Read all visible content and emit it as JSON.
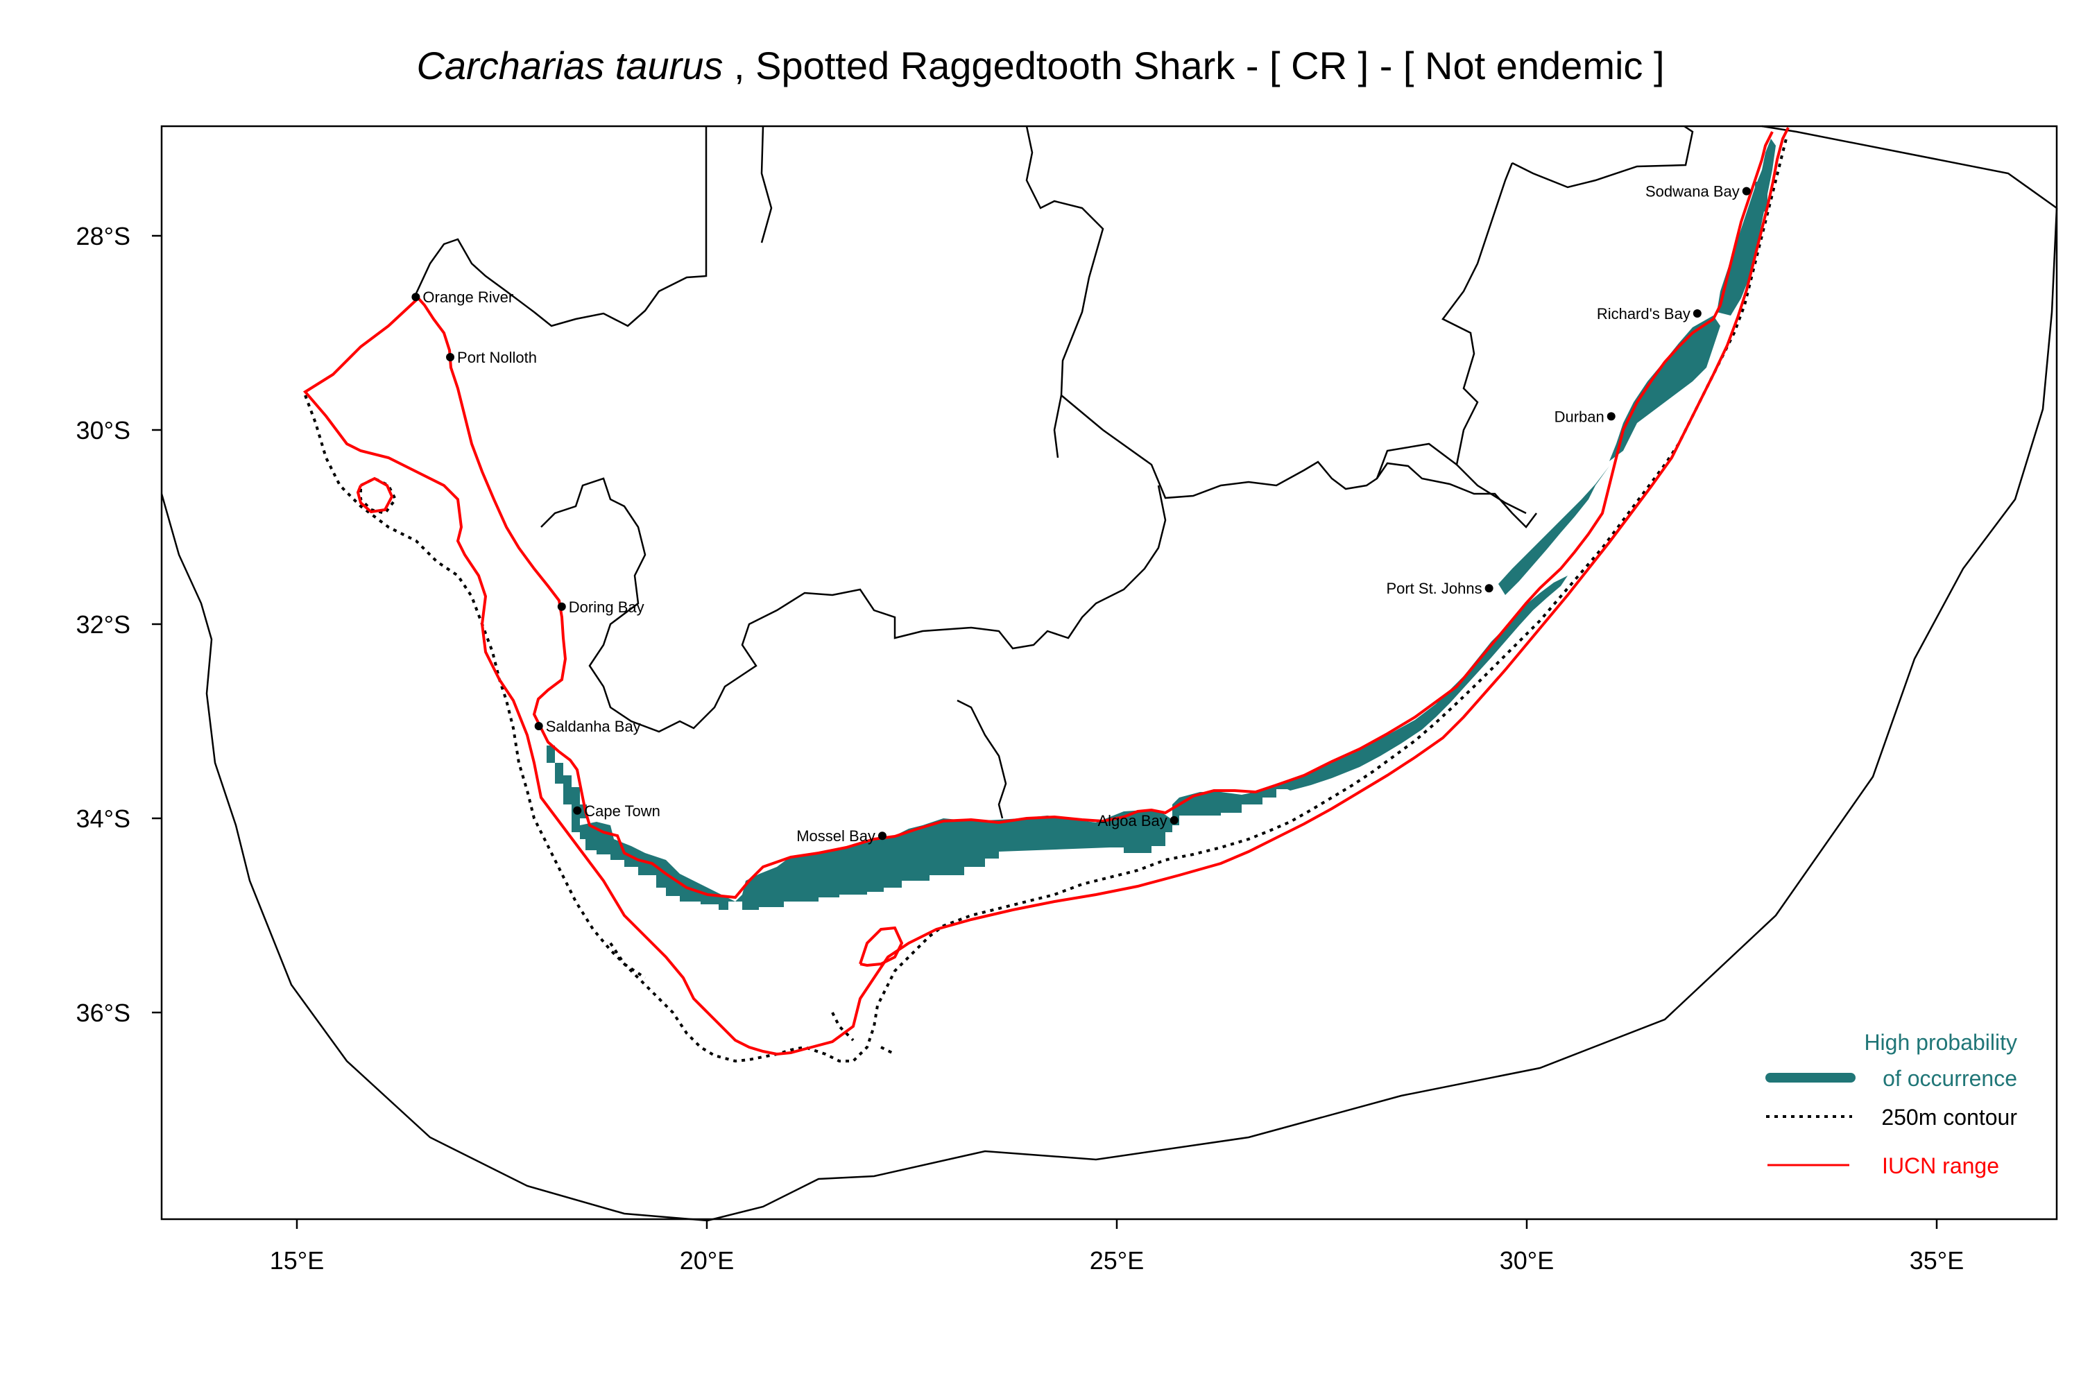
{
  "title": {
    "species": "Carcharias taurus",
    "rest": " , Spotted Raggedtooth Shark  - [ CR ] - [ Not endemic ]"
  },
  "axes": {
    "x_ticks": [
      "15°E",
      "20°E",
      "25°E",
      "30°E",
      "35°E"
    ],
    "y_ticks": [
      "28°S",
      "30°S",
      "32°S",
      "34°S",
      "36°S"
    ]
  },
  "places": [
    {
      "name": "Sodwana Bay",
      "lon": 32.68,
      "lat": -27.54,
      "anchor": "end"
    },
    {
      "name": "Richard's Bay",
      "lon": 32.08,
      "lat": -28.8,
      "anchor": "end"
    },
    {
      "name": "Durban",
      "lon": 31.03,
      "lat": -29.86,
      "anchor": "end"
    },
    {
      "name": "Port St. Johns",
      "lon": 29.54,
      "lat": -31.63,
      "anchor": "end"
    },
    {
      "name": "Orange River",
      "lon": 16.45,
      "lat": -28.63,
      "anchor": "start"
    },
    {
      "name": "Port Nolloth",
      "lon": 16.87,
      "lat": -29.25,
      "anchor": "start"
    },
    {
      "name": "Doring Bay",
      "lon": 18.23,
      "lat": -31.82,
      "anchor": "start"
    },
    {
      "name": "Saldanha Bay",
      "lon": 17.95,
      "lat": -33.05,
      "anchor": "start"
    },
    {
      "name": "Cape Town",
      "lon": 18.42,
      "lat": -33.92,
      "anchor": "start"
    },
    {
      "name": "Mossel Bay",
      "lon": 22.14,
      "lat": -34.18,
      "anchor": "end"
    },
    {
      "name": "Algoa Bay",
      "lon": 25.7,
      "lat": -34.02,
      "anchor": "end"
    }
  ],
  "legend": {
    "high_prob_line1": "High probability",
    "high_prob_line2": "of occurrence",
    "contour": "250m contour",
    "iucn": "IUCN range"
  },
  "colors": {
    "occurrence": "#207677",
    "iucn": "#ff0000",
    "contour": "#000000",
    "boundary": "#000000"
  }
}
